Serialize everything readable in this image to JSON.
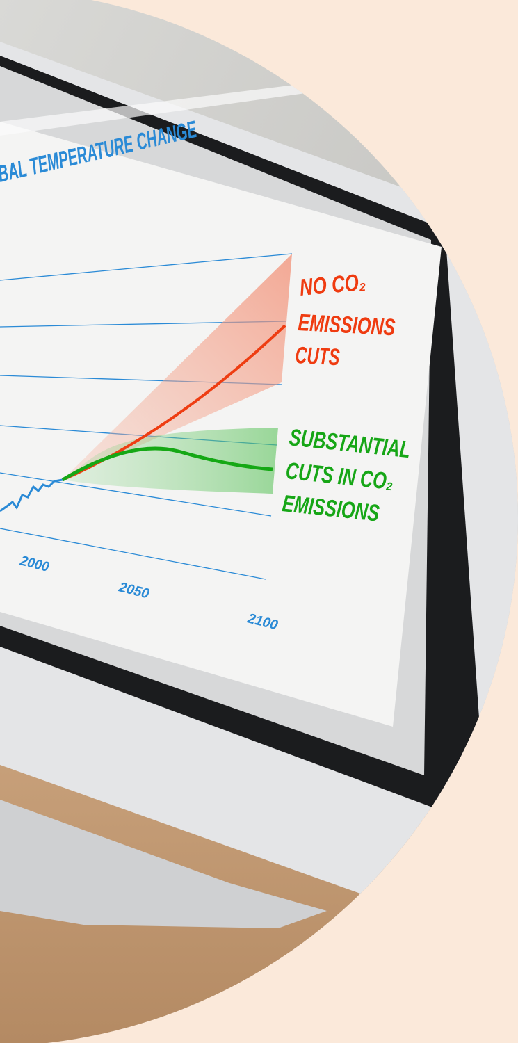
{
  "screen": {
    "title": "BAL TEMPERATURE CHANGE",
    "annotations": [
      {
        "lines": [
          "NO CO₂",
          "EMISSIONS",
          "CUTS"
        ]
      },
      {
        "lines": [
          "SUBSTANTIAL",
          "CUTS IN CO₂",
          "EMISSIONS"
        ]
      }
    ],
    "x_labels": [
      "2000",
      "2050",
      "2100"
    ]
  }
}
